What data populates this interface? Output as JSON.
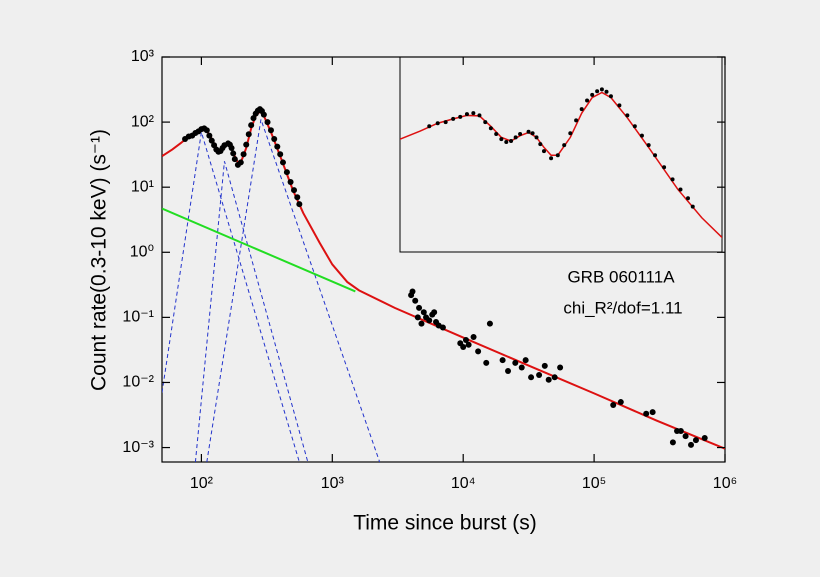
{
  "chart_data": {
    "type": "scatter",
    "log_x": true,
    "log_y": true,
    "xlabel": "Time since burst (s)",
    "ylabel": "Count rate(0.3-10 keV) (s⁻¹)",
    "annotations": [
      "GRB 060111A",
      "chi_R²/dof=1.11"
    ],
    "xlim": [
      50,
      1000000
    ],
    "ylim": [
      0.0006,
      1000
    ],
    "xticks": [
      {
        "value": 100,
        "label": "10²"
      },
      {
        "value": 1000,
        "label": "10³"
      },
      {
        "value": 10000,
        "label": "10⁴"
      },
      {
        "value": 100000,
        "label": "10⁵"
      },
      {
        "value": 1000000,
        "label": "10⁶"
      }
    ],
    "yticks": [
      {
        "value": 0.001,
        "label": "10⁻³"
      },
      {
        "value": 0.01,
        "label": "10⁻²"
      },
      {
        "value": 0.1,
        "label": "10⁻¹"
      },
      {
        "value": 1,
        "label": "10⁰"
      },
      {
        "value": 10,
        "label": "10¹"
      },
      {
        "value": 100,
        "label": "10²"
      },
      {
        "value": 1000,
        "label": "10³"
      }
    ],
    "inset": {
      "xlim": [
        60,
        700
      ],
      "ylim": [
        1.5,
        400
      ]
    },
    "series": [
      {
        "mode": "markers",
        "color": "#000000",
        "in_inset": true,
        "x": [
          75,
          80,
          85,
          90,
          95,
          100,
          105,
          110,
          115,
          120,
          125,
          130,
          135,
          140,
          145,
          150,
          160,
          165,
          170,
          175,
          180,
          190,
          200,
          210,
          220,
          230,
          240,
          250,
          260,
          270,
          280,
          290,
          300,
          320,
          340,
          360,
          380,
          400,
          420,
          450,
          480,
          510,
          540,
          560
        ],
        "values": [
          55,
          60,
          62,
          68,
          72,
          78,
          80,
          75,
          62,
          52,
          44,
          38,
          35,
          36,
          40,
          44,
          47,
          45,
          40,
          33,
          27,
          22,
          24,
          32,
          45,
          65,
          90,
          115,
          135,
          150,
          158,
          148,
          130,
          100,
          75,
          55,
          42,
          32,
          24,
          17,
          12,
          9,
          7,
          5.5
        ]
      },
      {
        "mode": "markers",
        "color": "#000000",
        "x": [
          4000,
          4100,
          4300,
          4500,
          4600,
          4800,
          5000,
          5200,
          5500,
          5800,
          6000,
          6200,
          6500,
          7000,
          9500,
          10000,
          10500,
          11000,
          12000,
          13000,
          15000,
          16000,
          20000,
          22000,
          25000,
          28000,
          30000,
          33000,
          38000,
          42000,
          45000,
          50000,
          55000,
          140000,
          160000,
          250000,
          280000,
          400000,
          430000,
          460000,
          500000,
          550000,
          600000,
          700000
        ],
        "values": [
          0.22,
          0.25,
          0.18,
          0.1,
          0.14,
          0.08,
          0.12,
          0.1,
          0.09,
          0.11,
          0.12,
          0.085,
          0.075,
          0.07,
          0.04,
          0.035,
          0.045,
          0.038,
          0.05,
          0.03,
          0.02,
          0.08,
          0.022,
          0.015,
          0.02,
          0.017,
          0.022,
          0.012,
          0.013,
          0.018,
          0.011,
          0.012,
          0.017,
          0.0045,
          0.005,
          0.0033,
          0.0035,
          0.0012,
          0.0018,
          0.0018,
          0.0015,
          0.0011,
          0.0013,
          0.0014
        ]
      },
      {
        "mode": "line",
        "color": "#2233cc",
        "dash": true,
        "x": [
          50,
          100,
          560
        ],
        "values": [
          0.007,
          70,
          0.0006
        ]
      },
      {
        "mode": "line",
        "color": "#2233cc",
        "dash": true,
        "x": [
          90,
          150,
          650
        ],
        "values": [
          0.0006,
          25,
          0.0006
        ]
      },
      {
        "mode": "line",
        "color": "#2233cc",
        "dash": true,
        "x": [
          110,
          285,
          2300
        ],
        "values": [
          0.0006,
          110,
          0.0006
        ]
      },
      {
        "mode": "line",
        "color": "#22dd22",
        "x": [
          50,
          1500
        ],
        "values": [
          4.7,
          0.25
        ]
      },
      {
        "mode": "line",
        "color": "#dd1111",
        "in_inset": true,
        "x": [
          50,
          60,
          70,
          80,
          90,
          100,
          110,
          120,
          130,
          140,
          150,
          160,
          170,
          180,
          190,
          200,
          220,
          240,
          260,
          280,
          300,
          340,
          400,
          500,
          600,
          800,
          1000,
          1300,
          1600,
          3000,
          10000,
          30000,
          100000,
          300000,
          1000000
        ],
        "values": [
          30,
          38,
          48,
          60,
          68,
          75,
          74,
          55,
          40,
          36,
          42,
          46,
          40,
          30,
          24,
          24,
          40,
          80,
          125,
          145,
          125,
          70,
          30,
          9,
          4,
          1.4,
          0.65,
          0.35,
          0.26,
          0.14,
          0.049,
          0.019,
          0.0068,
          0.0026,
          0.00096
        ]
      }
    ]
  }
}
